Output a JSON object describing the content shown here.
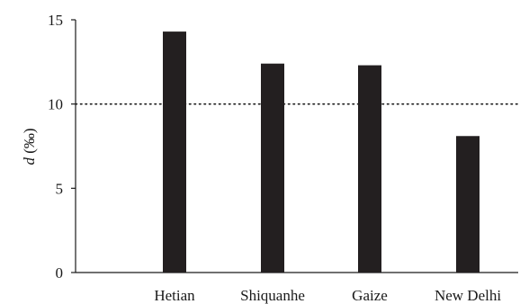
{
  "chart_data": {
    "type": "bar",
    "categories": [
      "Hetian",
      "Shiquanhe",
      "Gaize",
      "New Delhi"
    ],
    "values": [
      14.3,
      12.4,
      12.3,
      8.1
    ],
    "title": "",
    "xlabel": "",
    "ylabel_italic": "d",
    "ylabel_unit": " (‰)",
    "ylim": [
      0,
      15
    ],
    "yticks": [
      0,
      5,
      10,
      15
    ],
    "reference_line": {
      "value": 10,
      "style": "dotted"
    },
    "bar_color": "#231f20",
    "grid": false,
    "legend": "none"
  }
}
